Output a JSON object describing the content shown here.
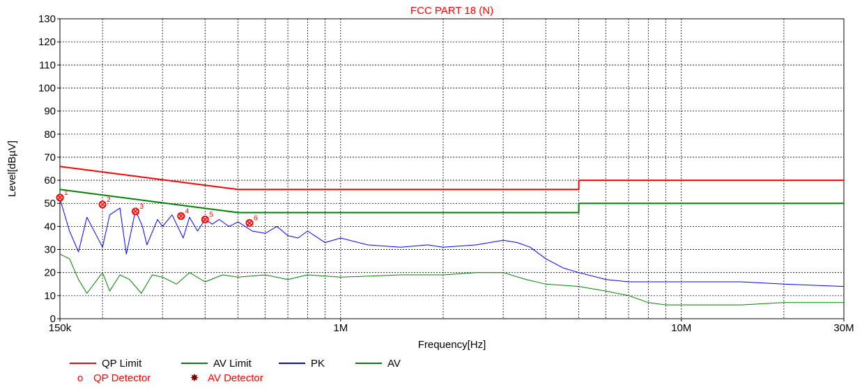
{
  "chart_data": {
    "type": "line",
    "title": "FCC PART 18 (N)",
    "xlabel": "Frequency[Hz]",
    "ylabel": "Level[dBµV]",
    "xscale": "log",
    "xlim": [
      150000,
      30000000
    ],
    "ylim": [
      0,
      130
    ],
    "grid": true,
    "x_ticks": [
      {
        "value": 150000,
        "label": "150k"
      },
      {
        "value": 1000000,
        "label": "1M"
      },
      {
        "value": 10000000,
        "label": "10M"
      },
      {
        "value": 30000000,
        "label": "30M"
      }
    ],
    "y_ticks": [
      0,
      10,
      20,
      30,
      40,
      50,
      60,
      70,
      80,
      90,
      100,
      110,
      120,
      130
    ],
    "y_tick_labels": [
      "0",
      "10",
      "20",
      "30",
      "40",
      "50",
      "60",
      "70",
      "80",
      "90",
      "100",
      "110",
      "120",
      "130"
    ],
    "colors": {
      "qp_limit": "#ff0000",
      "av_limit": "#008000",
      "pk": "#0000ff",
      "av": "#008000",
      "title": "#ff0000",
      "marker": "#ff0000"
    },
    "series": [
      {
        "name": "QP Limit",
        "key": "qp_limit",
        "x": [
          150000,
          500000,
          500000,
          5000000,
          5000000,
          30000000
        ],
        "y": [
          66,
          56,
          56,
          56,
          60,
          60
        ]
      },
      {
        "name": "AV Limit",
        "key": "av_limit",
        "x": [
          150000,
          500000,
          500000,
          5000000,
          5000000,
          30000000
        ],
        "y": [
          56,
          46,
          46,
          46,
          50,
          50
        ]
      },
      {
        "name": "PK",
        "key": "pk",
        "x": [
          150000,
          160000,
          170000,
          180000,
          200000,
          210000,
          225000,
          235000,
          250000,
          262000,
          270000,
          290000,
          300000,
          320000,
          345000,
          360000,
          380000,
          400000,
          420000,
          440000,
          470000,
          500000,
          550000,
          600000,
          650000,
          700000,
          750000,
          800000,
          900000,
          1000000,
          1200000,
          1500000,
          1800000,
          2000000,
          2500000,
          3000000,
          3300000,
          3600000,
          4000000,
          4500000,
          5000000,
          6000000,
          7000000,
          8000000,
          10000000,
          15000000,
          20000000,
          30000000
        ],
        "y": [
          52,
          38,
          29,
          44,
          31,
          45,
          48,
          28,
          47,
          40,
          32,
          43,
          40,
          45,
          35,
          44,
          38,
          43,
          41,
          43,
          40,
          42,
          38,
          37,
          40,
          36,
          35,
          38,
          33,
          35,
          32,
          31,
          32,
          31,
          32,
          34,
          33,
          31,
          26,
          22,
          20,
          17,
          16,
          16,
          16,
          16,
          15,
          14
        ]
      },
      {
        "name": "AV",
        "key": "av",
        "x": [
          150000,
          160000,
          170000,
          180000,
          200000,
          210000,
          225000,
          240000,
          260000,
          280000,
          300000,
          330000,
          360000,
          400000,
          450000,
          500000,
          600000,
          700000,
          800000,
          1000000,
          1500000,
          2000000,
          2500000,
          3000000,
          3500000,
          4000000,
          5000000,
          6000000,
          7000000,
          8000000,
          9000000,
          10000000,
          15000000,
          20000000,
          30000000
        ],
        "y": [
          28,
          26,
          17,
          11,
          20,
          12,
          19,
          17,
          11,
          19,
          18,
          15,
          20,
          16,
          19,
          18,
          19,
          17,
          19,
          18,
          19,
          19,
          20,
          20,
          17,
          15,
          14,
          12,
          10,
          7,
          6,
          6,
          6,
          7,
          7
        ]
      }
    ],
    "markers": [
      {
        "label": "1",
        "x": 150000,
        "y": 52.5
      },
      {
        "label": "2",
        "x": 200000,
        "y": 49.5
      },
      {
        "label": "3",
        "x": 250000,
        "y": 46.5
      },
      {
        "label": "4",
        "x": 340000,
        "y": 44.5
      },
      {
        "label": "5",
        "x": 400000,
        "y": 43
      },
      {
        "label": "6",
        "x": 540000,
        "y": 41.5
      }
    ],
    "legend": {
      "placement": "bottom-left",
      "entries": [
        {
          "label": "QP Limit",
          "kind": "line",
          "color": "#ff0000"
        },
        {
          "label": "AV Limit",
          "kind": "line",
          "color": "#008000"
        },
        {
          "label": "PK",
          "kind": "line",
          "color": "#0000ff"
        },
        {
          "label": "AV",
          "kind": "line",
          "color": "#008000"
        },
        {
          "label": "QP Detector",
          "kind": "marker",
          "symbol": "o",
          "color": "#ff0000"
        },
        {
          "label": "AV Detector",
          "kind": "marker",
          "symbol": "✸",
          "color": "#800000"
        }
      ]
    }
  }
}
